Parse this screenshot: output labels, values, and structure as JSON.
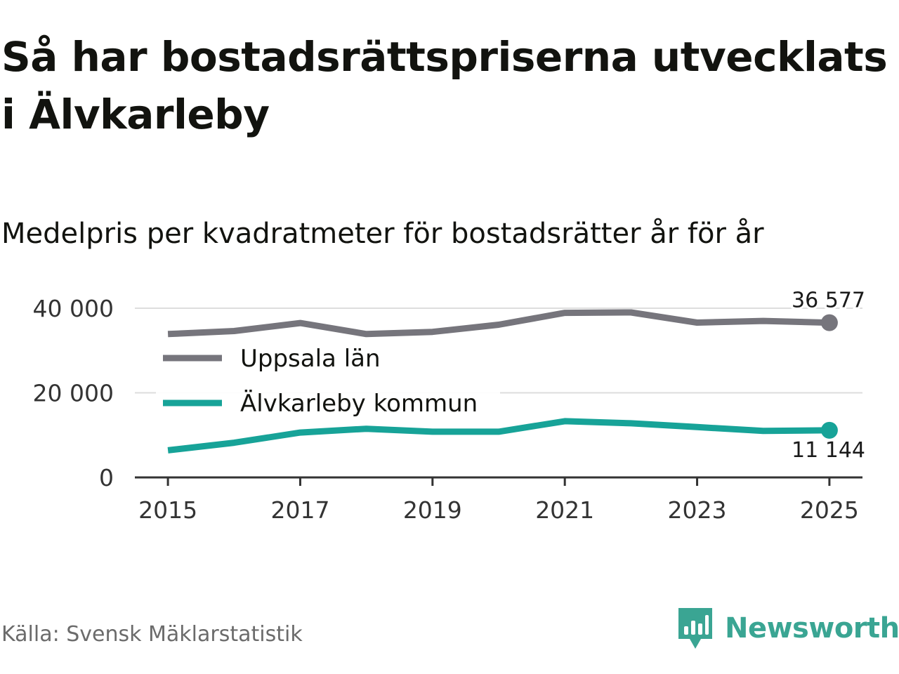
{
  "title": "Så har bostadsrättspriserna utvecklats i Älvkarleby",
  "subtitle": "Medelpris per kvadratmeter för bostadsrätter år för år",
  "source": "Källa: Svensk Mäklarstatistik",
  "brand": "Newsworthy",
  "colors": {
    "uppsala": "#76757c",
    "alvkarleby": "#17a398",
    "grid": "#dddddd",
    "axis": "#333333",
    "brand": "#3aa593"
  },
  "chart_data": {
    "type": "line",
    "title": "Så har bostadsrättspriserna utvecklats i Älvkarleby",
    "subtitle": "Medelpris per kvadratmeter för bostadsrätter år för år",
    "xlabel": "",
    "ylabel": "",
    "x": [
      2015,
      2016,
      2017,
      2018,
      2019,
      2020,
      2021,
      2022,
      2023,
      2024,
      2025
    ],
    "xticks": [
      2015,
      2017,
      2019,
      2021,
      2023,
      2025
    ],
    "xtick_labels": [
      "2015",
      "2017",
      "2019",
      "2021",
      "2023",
      "2025"
    ],
    "xlim": [
      2014.5,
      2025.5
    ],
    "ylim": [
      0,
      40000
    ],
    "yticks": [
      0,
      20000,
      40000
    ],
    "ytick_labels": [
      "0",
      "20 000",
      "40 000"
    ],
    "grid": true,
    "legend_position": "upper-left",
    "series": [
      {
        "name": "Uppsala län",
        "color": "#76757c",
        "values": [
          33900,
          34600,
          36500,
          33900,
          34400,
          36100,
          38900,
          39000,
          36600,
          37000,
          36577
        ],
        "end_label": "36 577"
      },
      {
        "name": "Älvkarleby kommun",
        "color": "#17a398",
        "values": [
          6400,
          8200,
          10600,
          11500,
          10800,
          10800,
          13300,
          12800,
          11900,
          11000,
          11144
        ],
        "end_label": "11 144"
      }
    ]
  }
}
